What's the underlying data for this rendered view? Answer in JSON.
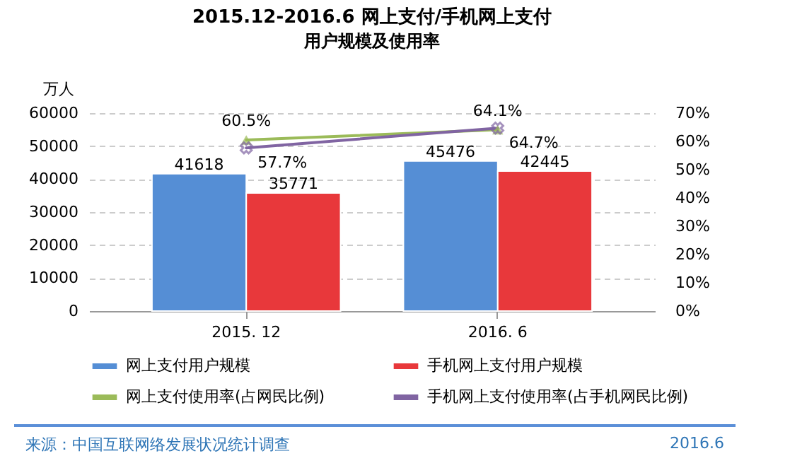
{
  "chart_data": {
    "type": "bar",
    "title": "2015.12-2016.6 网上支付/手机网上支付",
    "subtitle": "用户规模及使用率",
    "ylabel": "万人",
    "categories": [
      "2015. 12",
      "2016. 6"
    ],
    "series": [
      {
        "name": "网上支付用户规模",
        "color": "#558ed5",
        "values": [
          41618,
          45476
        ],
        "value_labels": [
          "41618",
          "45476"
        ]
      },
      {
        "name": "手机网上支付用户规模",
        "color": "#e8383b",
        "values": [
          35771,
          42445
        ],
        "value_labels": [
          "35771",
          "42445"
        ]
      },
      {
        "name": "网上支付使用率(占网民比例)",
        "type": "line",
        "axis": "y2",
        "marker": "triangle",
        "color": "#9bbb59",
        "values": [
          60.5,
          64.1
        ],
        "value_labels": [
          "60.5%",
          "64.1%"
        ]
      },
      {
        "name": "手机网上支付使用率(占手机网民比例)",
        "type": "line",
        "axis": "y2",
        "marker": "cross",
        "color": "#8064a2",
        "values": [
          57.7,
          64.7
        ],
        "value_labels": [
          "57.7%",
          "64.7%"
        ]
      }
    ],
    "ylim": [
      0,
      60000
    ],
    "yticks": [
      0,
      10000,
      20000,
      30000,
      40000,
      50000,
      60000
    ],
    "y2lim": [
      0,
      70
    ],
    "y2ticks": [
      {
        "value": 0,
        "label": "0%"
      },
      {
        "value": 10,
        "label": "10%"
      },
      {
        "value": 20,
        "label": "20%"
      },
      {
        "value": 30,
        "label": "30%"
      },
      {
        "value": 40,
        "label": "40%"
      },
      {
        "value": 50,
        "label": "50%"
      },
      {
        "value": 60,
        "label": "60%"
      },
      {
        "value": 70,
        "label": "70%"
      }
    ],
    "grid": "y",
    "legend": "bottom",
    "annotations": [
      "来源：中国互联网络发展状况统计调查",
      "2016.6"
    ]
  }
}
